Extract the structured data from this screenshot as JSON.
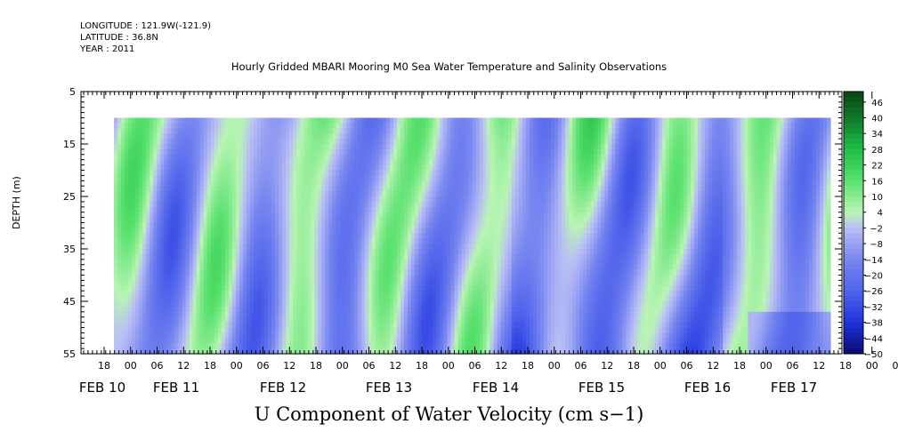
{
  "meta": {
    "longitude": "LONGITUDE : 121.9W(-121.9)",
    "latitude": "LATITUDE : 36.8N",
    "year": "YEAR : 2011"
  },
  "chart_data": {
    "type": "heatmap",
    "title": "Hourly Gridded MBARI Mooring M0 Sea Water Temperature and Salinity Observations",
    "subtitle_bottom": "U Component of Water Velocity (cm s−1)",
    "ylabel": "DEPTH (m)",
    "ylim": [
      5,
      55
    ],
    "y_reversed": true,
    "y_ticks": [
      5,
      15,
      25,
      35,
      45,
      55
    ],
    "y_tick_labels": [
      "5",
      "15",
      "25",
      "35",
      "45",
      "55"
    ],
    "data_depth_range": [
      10,
      55
    ],
    "hour_tick_labels": [
      "18",
      "00",
      "06",
      "12",
      "18",
      "00",
      "06",
      "12",
      "18",
      "00",
      "06",
      "12",
      "18",
      "00",
      "06",
      "12",
      "18",
      "00",
      "06",
      "12",
      "18",
      "00",
      "06",
      "12",
      "18",
      "00",
      "06",
      "12",
      "18",
      "00",
      "06",
      "12"
    ],
    "date_labels": [
      "FEB 10",
      "FEB 11",
      "FEB 12",
      "FEB 13",
      "FEB 14",
      "FEB 15",
      "FEB 16",
      "FEB 17"
    ],
    "colorbar": {
      "min": -50,
      "max": 50,
      "step": 6,
      "labels": [
        "46",
        "40",
        "34",
        "28",
        "22",
        "16",
        "10",
        "4",
        "-2",
        "-8",
        "-14",
        "-20",
        "-26",
        "-32",
        "-38",
        "-44",
        "-50"
      ]
    },
    "colors": {
      "positive_strong": "#0a5a14",
      "positive_mid": "#2fd65a",
      "positive_light": "#b8f5b0",
      "negative_light": "#b8bcf5",
      "negative_mid": "#6f7ef0",
      "negative_strong": "#0a0a70"
    },
    "pattern_note": "Alternating bands of positive (green) and negative (blue) velocity tilting with depth over time"
  }
}
